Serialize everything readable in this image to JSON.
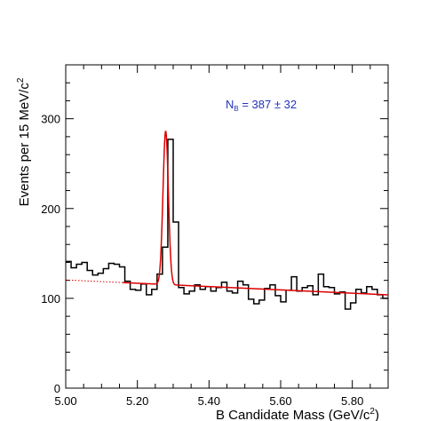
{
  "chart_data": {
    "type": "histogram",
    "title": "",
    "xlabel": "B Candidate Mass (GeV/c",
    "xlabel_sup": "2",
    "xlabel_suffix": ")",
    "ylabel": "Events per 15 MeV/c",
    "ylabel_sup": "2",
    "xlim": [
      5.0,
      5.9
    ],
    "ylim": [
      0,
      360
    ],
    "xticks": [
      5.0,
      5.2,
      5.4,
      5.6,
      5.8
    ],
    "xtick_labels": [
      "5.00",
      "5.20",
      "5.40",
      "5.60",
      "5.80"
    ],
    "yticks": [
      0,
      100,
      200,
      300
    ],
    "ytick_labels": [
      "0",
      "100",
      "200",
      "300"
    ],
    "grid": false,
    "annotation": {
      "main": "N",
      "sub": "B",
      "rest": " =  387 ± 32"
    },
    "histogram": {
      "name": "data",
      "color": "#000000",
      "bin_width": 0.015,
      "x_start": 5.0,
      "values": [
        141,
        134,
        138,
        140,
        131,
        126,
        128,
        133,
        139,
        138,
        135,
        119,
        110,
        109,
        116,
        104,
        110,
        127,
        157,
        277,
        185,
        112,
        105,
        108,
        115,
        110,
        113,
        108,
        112,
        118,
        108,
        106,
        119,
        115,
        99,
        94,
        98,
        111,
        115,
        103,
        96,
        109,
        124,
        108,
        112,
        114,
        104,
        127,
        113,
        112,
        105,
        107,
        88,
        95,
        110,
        106,
        113,
        110,
        104,
        100
      ]
    },
    "fit": {
      "name": "fit",
      "color": "#dd0000",
      "background": {
        "a": 120.5,
        "b": -18.5,
        "x0": 5.0
      },
      "peak": {
        "mean": 5.279,
        "sigma": 0.0075,
        "amplitude": 171
      },
      "dotted_below_x": 5.16
    }
  }
}
